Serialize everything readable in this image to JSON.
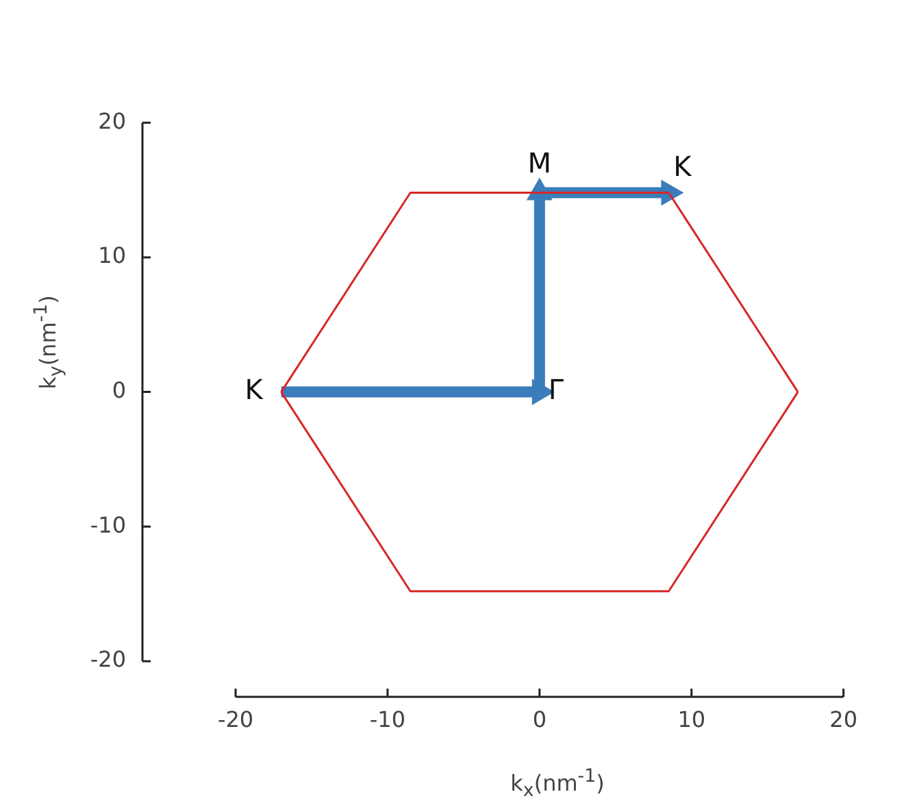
{
  "chart_data": {
    "type": "line",
    "xlabel": "k$_{x}$(nm$^{-1}$)",
    "ylabel": "k$_{y}$(nm$^{-1}$)",
    "xlim": [
      -20,
      20
    ],
    "xticks": [
      -20,
      -10,
      0,
      10,
      20
    ],
    "ylim": [
      -20,
      20
    ],
    "yticks": [
      -20,
      -10,
      0,
      10,
      20
    ],
    "grid": false,
    "legend": false,
    "marker": "none",
    "series": [
      {
        "color": "#d62728",
        "x": [
          -17,
          -8.5,
          8.5,
          17
        ],
        "values": [
          0,
          14.8,
          14.8,
          0
        ]
      },
      {
        "color": "#d62728",
        "x": [
          -17,
          -8.5,
          8.5,
          17
        ],
        "values": [
          0,
          -14.8,
          -14.8,
          0
        ]
      },
      {
        "color": "#3a7dba",
        "x": [
          -17,
          0
        ],
        "values": [
          0,
          0
        ],
        "marker": "triangle"
      },
      {
        "color": "#3a7dba",
        "x": [
          0,
          0
        ],
        "values": [
          0,
          14.8
        ],
        "marker": "triangle"
      },
      {
        "color": "#3a7dba",
        "x": [
          0,
          8.5
        ],
        "values": [
          14.8,
          14.8
        ],
        "marker": "triangle"
      }
    ],
    "annotations": [
      {
        "text": "K",
        "x": -17,
        "y": 0
      },
      {
        "text": "Γ",
        "x": 0,
        "y": 0
      },
      {
        "text": "M",
        "x": 0,
        "y": 14.8
      },
      {
        "text": "K",
        "x": 8.5,
        "y": 14.8
      }
    ]
  }
}
